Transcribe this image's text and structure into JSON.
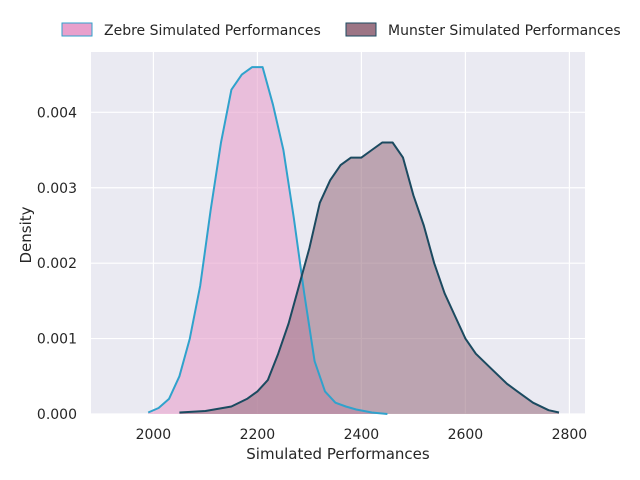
{
  "chart_data": {
    "type": "area",
    "xlabel": "Simulated Performances",
    "ylabel": "Density",
    "xlim": [
      1880,
      2830
    ],
    "ylim": [
      0,
      0.0048
    ],
    "x_ticks": [
      2000,
      2200,
      2400,
      2600,
      2800
    ],
    "x_tick_labels": [
      "2000",
      "2200",
      "2400",
      "2600",
      "2800"
    ],
    "y_ticks": [
      0,
      0.001,
      0.002,
      0.003,
      0.004
    ],
    "y_tick_labels": [
      "0.000",
      "0.001",
      "0.002",
      "0.003",
      "0.004"
    ],
    "grid": true,
    "legend_position": "top-center",
    "background_color": "#eaeaf2",
    "series": [
      {
        "name": "Zebre Simulated Performances",
        "fill_color": "#e8a0cc",
        "line_color": "#30a2cc",
        "x": [
          1990,
          2010,
          2030,
          2050,
          2070,
          2090,
          2110,
          2130,
          2150,
          2170,
          2190,
          2200,
          2210,
          2230,
          2250,
          2270,
          2290,
          2310,
          2330,
          2350,
          2370,
          2390,
          2420,
          2450
        ],
        "y": [
          2e-05,
          8e-05,
          0.0002,
          0.0005,
          0.001,
          0.0017,
          0.0027,
          0.0036,
          0.0043,
          0.0045,
          0.0046,
          0.0046,
          0.0046,
          0.0041,
          0.0035,
          0.0026,
          0.0016,
          0.0007,
          0.0003,
          0.00015,
          0.0001,
          6e-05,
          2e-05,
          0.0
        ]
      },
      {
        "name": "Munster Simulated Performances",
        "fill_color": "#9c7585",
        "line_color": "#1b4a60",
        "x": [
          2050,
          2100,
          2150,
          2180,
          2200,
          2220,
          2240,
          2260,
          2280,
          2300,
          2320,
          2340,
          2360,
          2380,
          2400,
          2420,
          2440,
          2450,
          2460,
          2480,
          2500,
          2520,
          2540,
          2560,
          2580,
          2600,
          2620,
          2650,
          2680,
          2700,
          2730,
          2760,
          2780
        ],
        "y": [
          2e-05,
          4e-05,
          0.0001,
          0.0002,
          0.0003,
          0.00045,
          0.0008,
          0.0012,
          0.0017,
          0.0022,
          0.0028,
          0.0031,
          0.0033,
          0.0034,
          0.0034,
          0.0035,
          0.0036,
          0.0036,
          0.0036,
          0.0034,
          0.0029,
          0.0025,
          0.002,
          0.0016,
          0.0013,
          0.001,
          0.0008,
          0.0006,
          0.0004,
          0.0003,
          0.00015,
          5e-05,
          2e-05
        ]
      }
    ]
  }
}
